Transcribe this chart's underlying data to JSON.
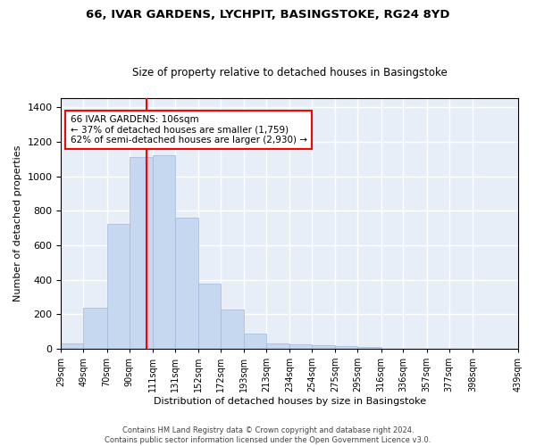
{
  "title": "66, IVAR GARDENS, LYCHPIT, BASINGSTOKE, RG24 8YD",
  "subtitle": "Size of property relative to detached houses in Basingstoke",
  "xlabel": "Distribution of detached houses by size in Basingstoke",
  "ylabel": "Number of detached properties",
  "bar_values": [
    30,
    235,
    725,
    1110,
    1120,
    760,
    375,
    225,
    90,
    30,
    25,
    20,
    15,
    10,
    0,
    0,
    0,
    0,
    0
  ],
  "bin_edges": [
    29,
    49,
    70,
    90,
    111,
    131,
    152,
    172,
    193,
    213,
    234,
    254,
    275,
    295,
    316,
    336,
    357,
    377,
    398,
    439
  ],
  "tick_labels": [
    "29sqm",
    "49sqm",
    "70sqm",
    "90sqm",
    "111sqm",
    "131sqm",
    "152sqm",
    "172sqm",
    "193sqm",
    "213sqm",
    "234sqm",
    "254sqm",
    "275sqm",
    "295sqm",
    "316sqm",
    "336sqm",
    "357sqm",
    "377sqm",
    "398sqm",
    "439sqm"
  ],
  "bar_color": "#c5d8f0",
  "bar_edge_color": "#a0b8d8",
  "vline_x": 106,
  "vline_color": "red",
  "annotation_line1": "66 IVAR GARDENS: 106sqm",
  "annotation_line2": "← 37% of detached houses are smaller (1,759)",
  "annotation_line3": "62% of semi-detached houses are larger (2,930) →",
  "ylim": [
    0,
    1450
  ],
  "yticks": [
    0,
    200,
    400,
    600,
    800,
    1000,
    1200,
    1400
  ],
  "background_color": "#e8eef8",
  "grid_color": "white",
  "footer_line1": "Contains HM Land Registry data © Crown copyright and database right 2024.",
  "footer_line2": "Contains public sector information licensed under the Open Government Licence v3.0."
}
